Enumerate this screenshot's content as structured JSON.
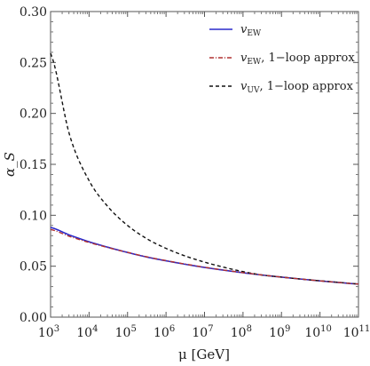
{
  "chart_data": {
    "type": "line",
    "xlabel": "μ [GeV]",
    "ylabel": "α_S",
    "xscale": "log",
    "xlim": [
      1000,
      100000000000
    ],
    "ylim": [
      0,
      0.3
    ],
    "grid": false,
    "legend_position": "top-right",
    "x_ticks": [
      {
        "value": 1000,
        "base": "10",
        "exp": "3"
      },
      {
        "value": 10000,
        "base": "10",
        "exp": "4"
      },
      {
        "value": 100000,
        "base": "10",
        "exp": "5"
      },
      {
        "value": 1000000,
        "base": "10",
        "exp": "6"
      },
      {
        "value": 10000000,
        "base": "10",
        "exp": "7"
      },
      {
        "value": 100000000,
        "base": "10",
        "exp": "8"
      },
      {
        "value": 1000000000,
        "base": "10",
        "exp": "9"
      },
      {
        "value": 10000000000,
        "base": "10",
        "exp": "10"
      },
      {
        "value": 100000000000,
        "base": "10",
        "exp": "11"
      }
    ],
    "y_ticks": [
      {
        "value": 0.0,
        "label": "0.00"
      },
      {
        "value": 0.05,
        "label": "0.05"
      },
      {
        "value": 0.1,
        "label": "0.10"
      },
      {
        "value": 0.15,
        "label": "0.15"
      },
      {
        "value": 0.2,
        "label": "0.20"
      },
      {
        "value": 0.25,
        "label": "0.25"
      },
      {
        "value": 0.3,
        "label": "0.30"
      }
    ],
    "x": [
      1000,
      3162,
      10000,
      31623,
      100000,
      316228,
      1000000,
      3162278,
      10000000,
      31622777,
      100000000,
      316227766,
      1000000000,
      3162277660,
      10000000000,
      31622776602,
      100000000000
    ],
    "series": [
      {
        "name": "v_EW",
        "name_main": "v",
        "name_sub": "EW",
        "name_rest": "",
        "color": "#2a2acc",
        "dash": "solid",
        "values": [
          0.088,
          0.0805,
          0.074,
          0.0685,
          0.0635,
          0.059,
          0.0553,
          0.0519,
          0.0488,
          0.0461,
          0.0436,
          0.0413,
          0.0393,
          0.0374,
          0.0356,
          0.034,
          0.0325
        ]
      },
      {
        "name": "v_EW, 1-loop approx",
        "name_main": "v",
        "name_sub": "EW",
        "name_rest": ", 1−loop approx",
        "color": "#b03030",
        "dash": "dashdot",
        "values": [
          0.086,
          0.0792,
          0.0733,
          0.0682,
          0.0636,
          0.0592,
          0.0555,
          0.0521,
          0.049,
          0.0462,
          0.0437,
          0.0414,
          0.0393,
          0.0374,
          0.0356,
          0.034,
          0.0325
        ]
      },
      {
        "name": "v_UV, 1-loop approx",
        "name_main": "v",
        "name_sub": "UV",
        "name_rest": ", 1−loop approx",
        "color": "#111111",
        "dash": "dashed",
        "values": [
          0.259,
          0.178,
          0.134,
          0.108,
          0.09,
          0.077,
          0.0675,
          0.06,
          0.054,
          0.049,
          0.0447,
          0.0413,
          0.0393,
          0.0374,
          0.0357,
          0.0341,
          0.0326
        ]
      }
    ]
  }
}
